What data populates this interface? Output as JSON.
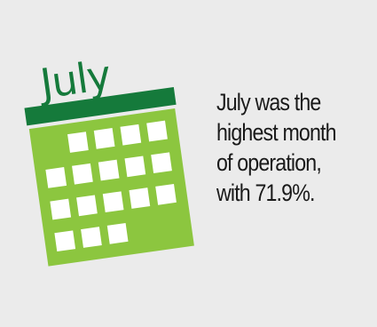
{
  "calendar": {
    "month_label": "July",
    "header_color": "#157a3b",
    "body_color": "#8cc63f",
    "cell_color": "#ffffff",
    "icon": "calendar-icon"
  },
  "caption": {
    "lines": [
      "July was the",
      "highest month",
      "of operation,",
      "with 71.9%."
    ]
  },
  "background_color": "#ebebeb"
}
